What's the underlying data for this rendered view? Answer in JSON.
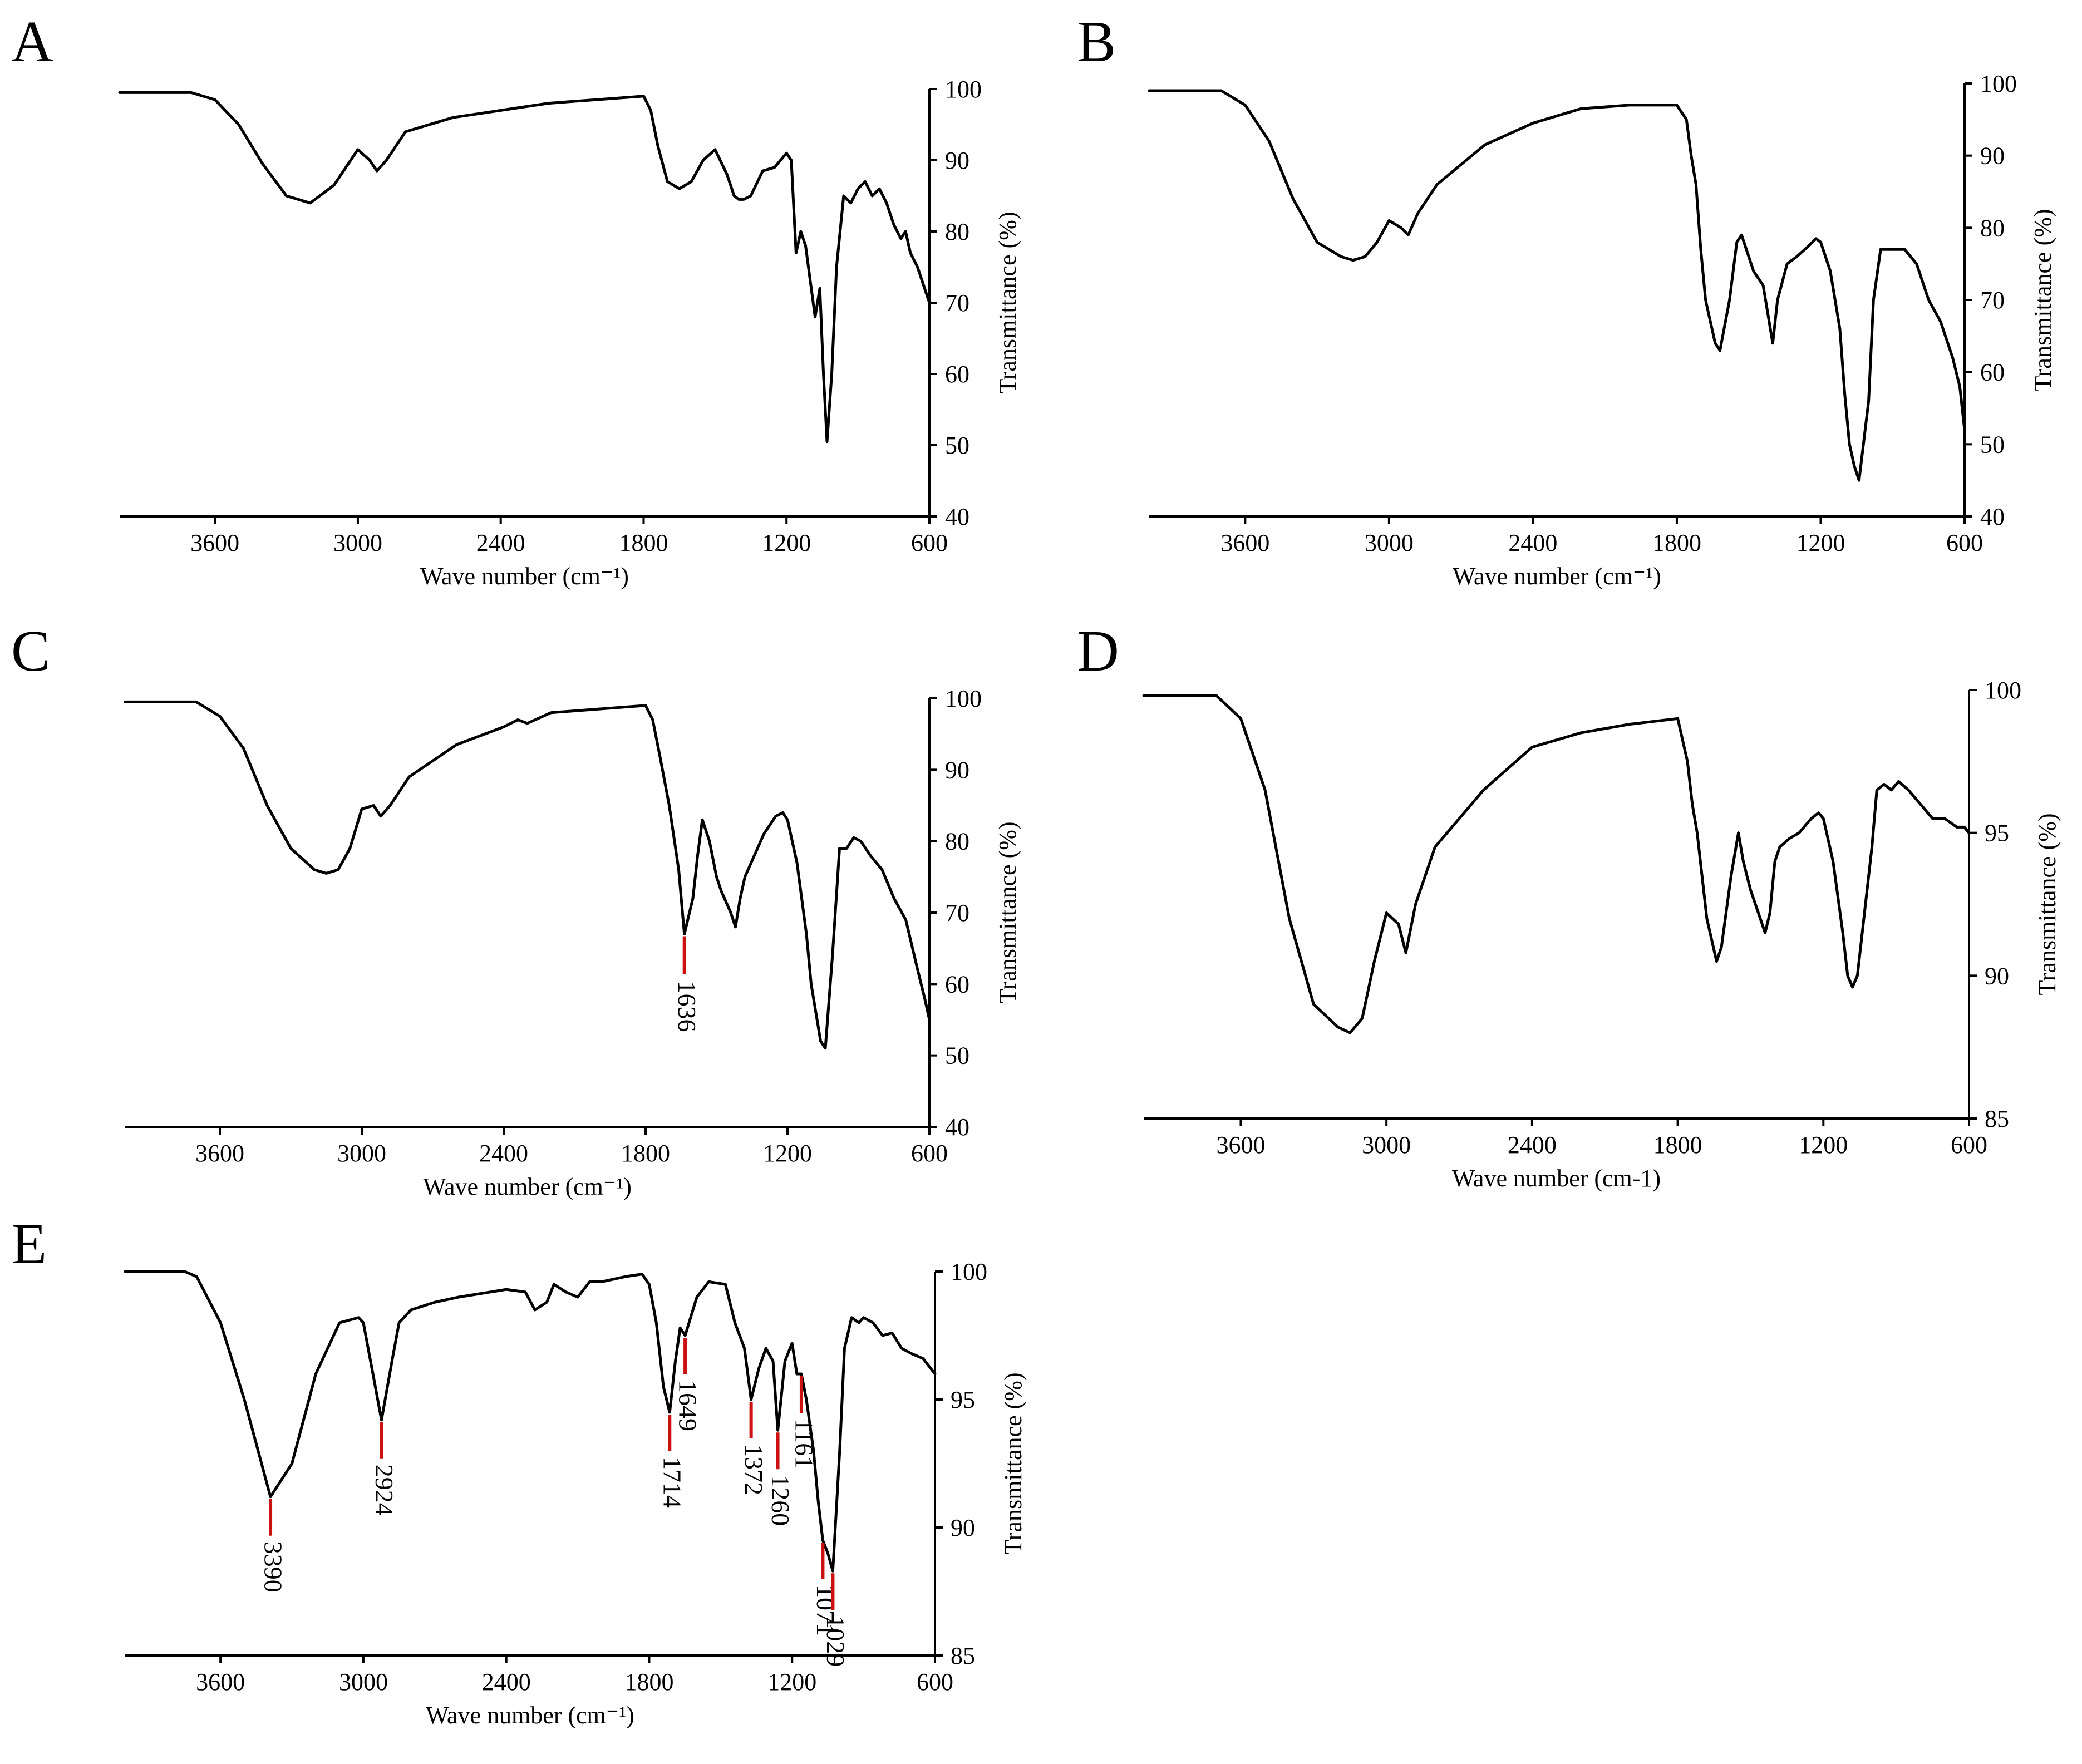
{
  "figure": {
    "background": "#ffffff",
    "line_color": "#000000",
    "marker_color": "#cc1111"
  },
  "chart_data": [
    {
      "panel": "A",
      "type": "line",
      "xlabel": "Wave number (cm⁻¹)",
      "ylabel": "Transmittance (%)",
      "xlim": [
        4000,
        600
      ],
      "ylim": [
        40,
        100
      ],
      "xticks": [
        3600,
        3000,
        2400,
        1800,
        1200,
        600
      ],
      "yticks": [
        40,
        50,
        60,
        70,
        80,
        90,
        100
      ],
      "x": [
        4000,
        3700,
        3600,
        3500,
        3400,
        3300,
        3200,
        3100,
        3000,
        2950,
        2920,
        2880,
        2800,
        2600,
        2400,
        2200,
        2000,
        1800,
        1770,
        1740,
        1700,
        1650,
        1600,
        1550,
        1500,
        1450,
        1420,
        1400,
        1380,
        1350,
        1300,
        1250,
        1200,
        1180,
        1160,
        1140,
        1120,
        1100,
        1080,
        1060,
        1045,
        1030,
        1010,
        990,
        960,
        930,
        900,
        870,
        840,
        810,
        780,
        750,
        720,
        700,
        680,
        650,
        620,
        600
      ],
      "y": [
        99.5,
        99.5,
        98.5,
        95,
        89.5,
        85,
        84,
        86.5,
        91.5,
        90,
        88.5,
        90,
        94,
        96,
        97,
        98,
        98.5,
        99,
        97,
        92,
        87,
        86,
        87,
        90,
        91.5,
        88,
        85,
        84.5,
        84.5,
        85,
        88.5,
        89,
        91,
        90,
        77,
        80,
        78,
        73,
        68,
        72,
        60,
        50.5,
        60,
        75,
        85,
        84,
        86,
        87,
        85,
        86,
        84,
        81,
        79,
        80,
        77,
        75,
        72,
        70
      ],
      "annotations": []
    },
    {
      "panel": "B",
      "type": "line",
      "xlabel": "Wave number (cm⁻¹)",
      "ylabel": "Transmittance (%)",
      "xlim": [
        4000,
        600
      ],
      "ylim": [
        40,
        100
      ],
      "xticks": [
        3600,
        3000,
        2400,
        1800,
        1200,
        600
      ],
      "yticks": [
        40,
        50,
        60,
        70,
        80,
        90,
        100
      ],
      "x": [
        4000,
        3700,
        3600,
        3500,
        3400,
        3300,
        3200,
        3150,
        3100,
        3050,
        3000,
        2950,
        2920,
        2880,
        2800,
        2600,
        2400,
        2200,
        2000,
        1800,
        1760,
        1740,
        1720,
        1700,
        1680,
        1640,
        1620,
        1580,
        1550,
        1530,
        1500,
        1480,
        1440,
        1420,
        1400,
        1380,
        1340,
        1300,
        1250,
        1220,
        1200,
        1160,
        1120,
        1100,
        1080,
        1060,
        1040,
        1000,
        980,
        950,
        920,
        890,
        850,
        800,
        750,
        700,
        650,
        620,
        600
      ],
      "y": [
        99,
        99,
        97,
        92,
        84,
        78,
        76,
        75.5,
        76,
        78,
        81,
        80,
        79,
        82,
        86,
        91.5,
        94.5,
        96.5,
        97,
        97,
        95,
        90,
        86,
        77,
        70,
        64,
        63,
        70,
        78,
        79,
        76,
        74,
        72,
        68,
        64,
        70,
        75,
        76,
        77.5,
        78.5,
        78,
        74,
        66,
        57,
        50,
        47,
        45,
        56,
        70,
        77,
        77,
        77,
        77,
        75,
        70,
        67,
        62,
        58,
        52
      ],
      "annotations": []
    },
    {
      "panel": "C",
      "type": "line",
      "xlabel": "Wave number (cm⁻¹)",
      "ylabel": "Transmittance (%)",
      "xlim": [
        4000,
        600
      ],
      "ylim": [
        40,
        100
      ],
      "xticks": [
        3600,
        3000,
        2400,
        1800,
        1200,
        600
      ],
      "yticks": [
        40,
        50,
        60,
        70,
        80,
        90,
        100
      ],
      "x": [
        4000,
        3700,
        3600,
        3500,
        3400,
        3300,
        3200,
        3150,
        3100,
        3050,
        3000,
        2950,
        2920,
        2880,
        2800,
        2600,
        2400,
        2340,
        2300,
        2200,
        2000,
        1800,
        1770,
        1740,
        1700,
        1660,
        1636,
        1600,
        1580,
        1560,
        1530,
        1500,
        1480,
        1440,
        1420,
        1400,
        1380,
        1340,
        1300,
        1250,
        1220,
        1200,
        1160,
        1120,
        1100,
        1080,
        1060,
        1040,
        1010,
        980,
        950,
        920,
        890,
        850,
        800,
        750,
        700,
        650,
        620,
        600
      ],
      "y": [
        99.5,
        99.5,
        97.5,
        93,
        85,
        79,
        76,
        75.5,
        76,
        79,
        84.5,
        85,
        83.5,
        85,
        89,
        93.5,
        96,
        97,
        96.5,
        98,
        98.5,
        99,
        97,
        92,
        85,
        76,
        67,
        72,
        78,
        83,
        80,
        75,
        73,
        70,
        68,
        72,
        75,
        78,
        81,
        83.5,
        84,
        83,
        77,
        67,
        60,
        56,
        52,
        51,
        64,
        79,
        79,
        80.5,
        80,
        78,
        76,
        72,
        69,
        62,
        58,
        55
      ],
      "annotations": [
        {
          "label": "1636",
          "x": 1636,
          "y": 67
        }
      ]
    },
    {
      "panel": "D",
      "type": "line",
      "xlabel": "Wave number (cm-1)",
      "ylabel": "Transmittance (%)",
      "xlim": [
        4000,
        600
      ],
      "ylim": [
        85,
        100
      ],
      "xticks": [
        3600,
        3000,
        2400,
        1800,
        1200,
        600
      ],
      "yticks": [
        85,
        90,
        95,
        100
      ],
      "x": [
        4000,
        3700,
        3600,
        3500,
        3400,
        3300,
        3200,
        3150,
        3100,
        3050,
        3000,
        2950,
        2920,
        2880,
        2800,
        2600,
        2400,
        2200,
        2000,
        1800,
        1760,
        1740,
        1720,
        1700,
        1680,
        1640,
        1620,
        1580,
        1550,
        1530,
        1500,
        1480,
        1440,
        1420,
        1400,
        1380,
        1340,
        1300,
        1250,
        1220,
        1200,
        1160,
        1120,
        1100,
        1080,
        1060,
        1040,
        1000,
        980,
        950,
        920,
        890,
        850,
        800,
        750,
        700,
        650,
        620,
        600
      ],
      "y": [
        99.8,
        99.8,
        99,
        96.5,
        92,
        89,
        88.2,
        88,
        88.5,
        90.5,
        92.2,
        91.8,
        90.8,
        92.5,
        94.5,
        96.5,
        98,
        98.5,
        98.8,
        99,
        97.5,
        96,
        95,
        93.5,
        92,
        90.5,
        91,
        93.5,
        95,
        94,
        93,
        92.5,
        91.5,
        92.2,
        94,
        94.5,
        94.8,
        95,
        95.5,
        95.7,
        95.5,
        94,
        91.5,
        90,
        89.6,
        90,
        91.5,
        94.5,
        96.5,
        96.7,
        96.5,
        96.8,
        96.5,
        96,
        95.5,
        95.5,
        95.2,
        95.2,
        95
      ],
      "annotations": []
    },
    {
      "panel": "E",
      "type": "line",
      "xlabel": "Wave number (cm⁻¹)",
      "ylabel": "Transmittance (%)",
      "xlim": [
        4000,
        600
      ],
      "ylim": [
        85,
        100
      ],
      "xticks": [
        3600,
        3000,
        2400,
        1800,
        1200,
        600
      ],
      "yticks": [
        85,
        90,
        95,
        100
      ],
      "x": [
        4000,
        3750,
        3700,
        3600,
        3500,
        3390,
        3300,
        3200,
        3100,
        3020,
        3000,
        2960,
        2924,
        2880,
        2850,
        2800,
        2700,
        2600,
        2400,
        2320,
        2280,
        2230,
        2200,
        2150,
        2100,
        2050,
        2000,
        1900,
        1830,
        1800,
        1770,
        1740,
        1714,
        1690,
        1670,
        1649,
        1600,
        1550,
        1480,
        1440,
        1400,
        1372,
        1340,
        1310,
        1280,
        1260,
        1230,
        1200,
        1180,
        1161,
        1140,
        1110,
        1090,
        1071,
        1050,
        1029,
        1000,
        980,
        950,
        920,
        900,
        860,
        820,
        780,
        740,
        700,
        650,
        600
      ],
      "y": [
        100,
        100,
        99.8,
        98,
        95,
        91.2,
        92.5,
        96,
        98,
        98.2,
        98,
        96,
        94.2,
        96.5,
        98,
        98.5,
        98.8,
        99,
        99.3,
        99.2,
        98.5,
        98.8,
        99.5,
        99.2,
        99,
        99.6,
        99.6,
        99.8,
        99.9,
        99.5,
        98,
        95.5,
        94.5,
        96.5,
        97.8,
        97.5,
        99,
        99.6,
        99.5,
        98,
        97,
        95,
        96.2,
        97,
        96.5,
        93.8,
        96.5,
        97.2,
        96,
        96,
        95,
        93,
        91,
        89.5,
        89,
        88.3,
        93,
        97,
        98.2,
        98,
        98.2,
        98,
        97.5,
        97.6,
        97,
        96.8,
        96.6,
        96
      ],
      "annotations": [
        {
          "label": "3390",
          "x": 3390,
          "y": 91.2
        },
        {
          "label": "2924",
          "x": 2924,
          "y": 94.2
        },
        {
          "label": "1714",
          "x": 1714,
          "y": 94.5
        },
        {
          "label": "1649",
          "x": 1649,
          "y": 97.5
        },
        {
          "label": "1372",
          "x": 1372,
          "y": 95
        },
        {
          "label": "1260",
          "x": 1260,
          "y": 93.8
        },
        {
          "label": "1161",
          "x": 1161,
          "y": 96
        },
        {
          "label": "1071",
          "x": 1071,
          "y": 89.5
        },
        {
          "label": "1029",
          "x": 1029,
          "y": 88.3
        }
      ]
    }
  ]
}
